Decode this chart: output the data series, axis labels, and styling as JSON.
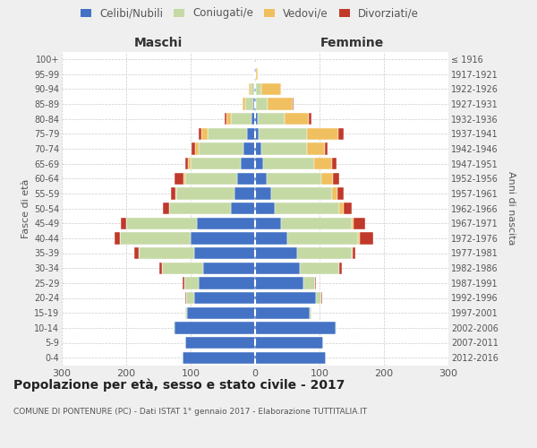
{
  "age_groups": [
    "0-4",
    "5-9",
    "10-14",
    "15-19",
    "20-24",
    "25-29",
    "30-34",
    "35-39",
    "40-44",
    "45-49",
    "50-54",
    "55-59",
    "60-64",
    "65-69",
    "70-74",
    "75-79",
    "80-84",
    "85-89",
    "90-94",
    "95-99",
    "100+"
  ],
  "birth_years": [
    "2012-2016",
    "2007-2011",
    "2002-2006",
    "1997-2001",
    "1992-1996",
    "1987-1991",
    "1982-1986",
    "1977-1981",
    "1972-1976",
    "1967-1971",
    "1962-1966",
    "1957-1961",
    "1952-1956",
    "1947-1951",
    "1942-1946",
    "1937-1941",
    "1932-1936",
    "1927-1931",
    "1922-1926",
    "1917-1921",
    "≤ 1916"
  ],
  "maschi_celibi": [
    112,
    108,
    125,
    105,
    95,
    88,
    80,
    95,
    100,
    90,
    38,
    32,
    28,
    22,
    18,
    12,
    6,
    3,
    2,
    1,
    1
  ],
  "maschi_coniugati": [
    0,
    1,
    2,
    4,
    12,
    22,
    65,
    85,
    110,
    110,
    95,
    90,
    80,
    78,
    70,
    62,
    32,
    12,
    5,
    1,
    0
  ],
  "maschi_vedovi": [
    0,
    0,
    0,
    0,
    0,
    0,
    0,
    0,
    0,
    0,
    1,
    2,
    3,
    4,
    5,
    9,
    7,
    4,
    3,
    0,
    0
  ],
  "maschi_divorziati": [
    0,
    0,
    0,
    0,
    1,
    2,
    4,
    8,
    8,
    8,
    9,
    7,
    14,
    5,
    5,
    4,
    2,
    0,
    0,
    0,
    0
  ],
  "femmine_nubili": [
    110,
    105,
    125,
    85,
    95,
    75,
    70,
    65,
    50,
    40,
    30,
    25,
    18,
    12,
    10,
    6,
    4,
    2,
    2,
    1,
    0
  ],
  "femmine_coniugate": [
    0,
    1,
    2,
    2,
    8,
    18,
    60,
    85,
    110,
    110,
    100,
    95,
    85,
    80,
    70,
    75,
    42,
    18,
    8,
    1,
    0
  ],
  "femmine_vedove": [
    0,
    0,
    0,
    0,
    0,
    0,
    1,
    1,
    2,
    3,
    7,
    8,
    18,
    28,
    28,
    48,
    38,
    38,
    30,
    2,
    1
  ],
  "femmine_divorziate": [
    0,
    0,
    0,
    0,
    1,
    2,
    4,
    4,
    22,
    18,
    13,
    9,
    9,
    7,
    4,
    8,
    4,
    2,
    0,
    0,
    0
  ],
  "color_celibi": "#4472c4",
  "color_coniugati": "#c5d9a5",
  "color_vedovi": "#f0c060",
  "color_divorziati": "#c0392b",
  "title": "Popolazione per età, sesso e stato civile - 2017",
  "subtitle": "COMUNE DI PONTENURE (PC) - Dati ISTAT 1° gennaio 2017 - Elaborazione TUTTITALIA.IT",
  "label_maschi": "Maschi",
  "label_femmine": "Femmine",
  "ylabel_left": "Fasce di età",
  "ylabel_right": "Anni di nascita",
  "xlim": 300,
  "bg_color": "#efefef",
  "plot_bg": "#ffffff"
}
